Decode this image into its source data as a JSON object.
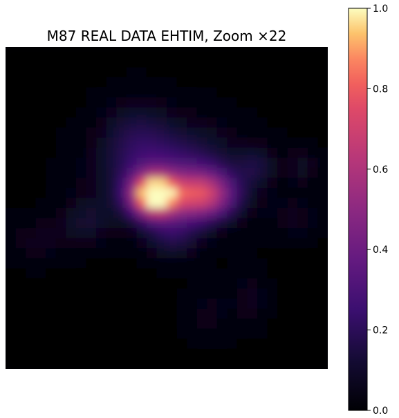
{
  "chart_data": {
    "type": "heatmap",
    "title": "M87 REAL DATA EHTIM, Zoom ×22",
    "colormap": "inferno",
    "axes_visible": false,
    "colorbar": {
      "range": [
        0.0,
        1.0
      ],
      "ticks": [
        0.0,
        0.2,
        0.4,
        0.6,
        0.8,
        1.0
      ],
      "tick_labels": [
        "0.0",
        "0.2",
        "0.4",
        "0.6",
        "0.8",
        "1.0"
      ],
      "placement": "right"
    },
    "grid_size": [
      32,
      32
    ],
    "components": [
      {
        "cx": 0.46,
        "cy": 0.46,
        "sx": 0.05,
        "sy": 0.045,
        "amp": 1.0
      },
      {
        "cx": 0.61,
        "cy": 0.46,
        "sx": 0.07,
        "sy": 0.05,
        "amp": 0.62
      },
      {
        "cx": 0.51,
        "cy": 0.39,
        "sx": 0.14,
        "sy": 0.1,
        "amp": 0.25
      },
      {
        "cx": 0.4,
        "cy": 0.27,
        "sx": 0.07,
        "sy": 0.08,
        "amp": 0.1
      },
      {
        "cx": 0.52,
        "cy": 0.58,
        "sx": 0.06,
        "sy": 0.05,
        "amp": 0.16
      },
      {
        "cx": 0.25,
        "cy": 0.54,
        "sx": 0.06,
        "sy": 0.05,
        "amp": 0.1
      },
      {
        "cx": 0.78,
        "cy": 0.37,
        "sx": 0.04,
        "sy": 0.04,
        "amp": 0.12
      },
      {
        "cx": 0.92,
        "cy": 0.37,
        "sx": 0.04,
        "sy": 0.04,
        "amp": 0.08
      },
      {
        "cx": 0.1,
        "cy": 0.6,
        "sx": 0.07,
        "sy": 0.05,
        "amp": 0.06
      },
      {
        "cx": 0.76,
        "cy": 0.78,
        "sx": 0.04,
        "sy": 0.06,
        "amp": 0.06
      },
      {
        "cx": 0.63,
        "cy": 0.83,
        "sx": 0.05,
        "sy": 0.06,
        "amp": 0.05
      },
      {
        "cx": 0.9,
        "cy": 0.53,
        "sx": 0.06,
        "sy": 0.05,
        "amp": 0.06
      }
    ]
  }
}
